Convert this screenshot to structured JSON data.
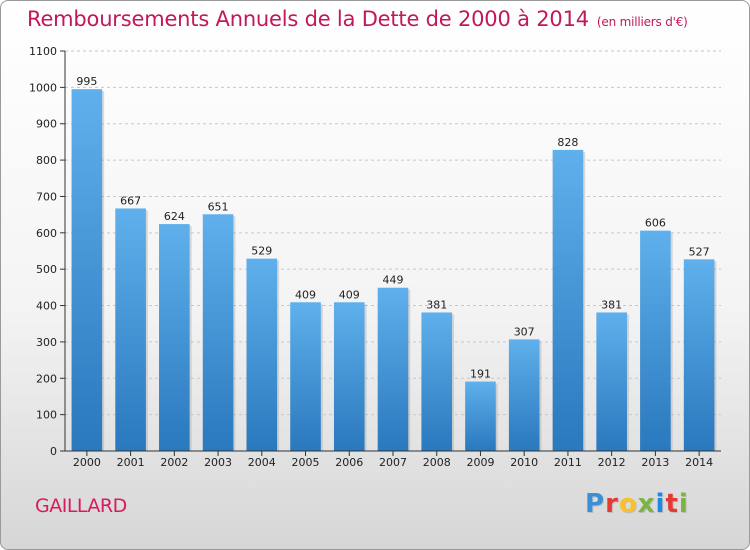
{
  "chart_data": {
    "type": "bar",
    "title": "Remboursements Annuels de la Dette de 2000 à 2014",
    "subtitle": "(en milliers d'€)",
    "categories": [
      "2000",
      "2001",
      "2002",
      "2003",
      "2004",
      "2005",
      "2006",
      "2007",
      "2008",
      "2009",
      "2010",
      "2011",
      "2012",
      "2013",
      "2014"
    ],
    "values": [
      995,
      667,
      624,
      651,
      529,
      409,
      409,
      449,
      381,
      191,
      307,
      828,
      381,
      606,
      527
    ],
    "ylim": [
      0,
      1100
    ],
    "yticks": [
      0,
      100,
      200,
      300,
      400,
      500,
      600,
      700,
      800,
      900,
      1000,
      1100
    ],
    "xlabel": "",
    "ylabel": "",
    "grid": true,
    "legend": "none",
    "bar_color": "#3d95d8"
  },
  "commune": "GAILLARD",
  "logo": {
    "letters": [
      "P",
      "r",
      "o",
      "x",
      "i",
      "t",
      "i"
    ],
    "colors": [
      "#3b8fd6",
      "#e53935",
      "#fbc02d",
      "#7cb342",
      "#1e88e5",
      "#e53935",
      "#7cb342"
    ]
  }
}
